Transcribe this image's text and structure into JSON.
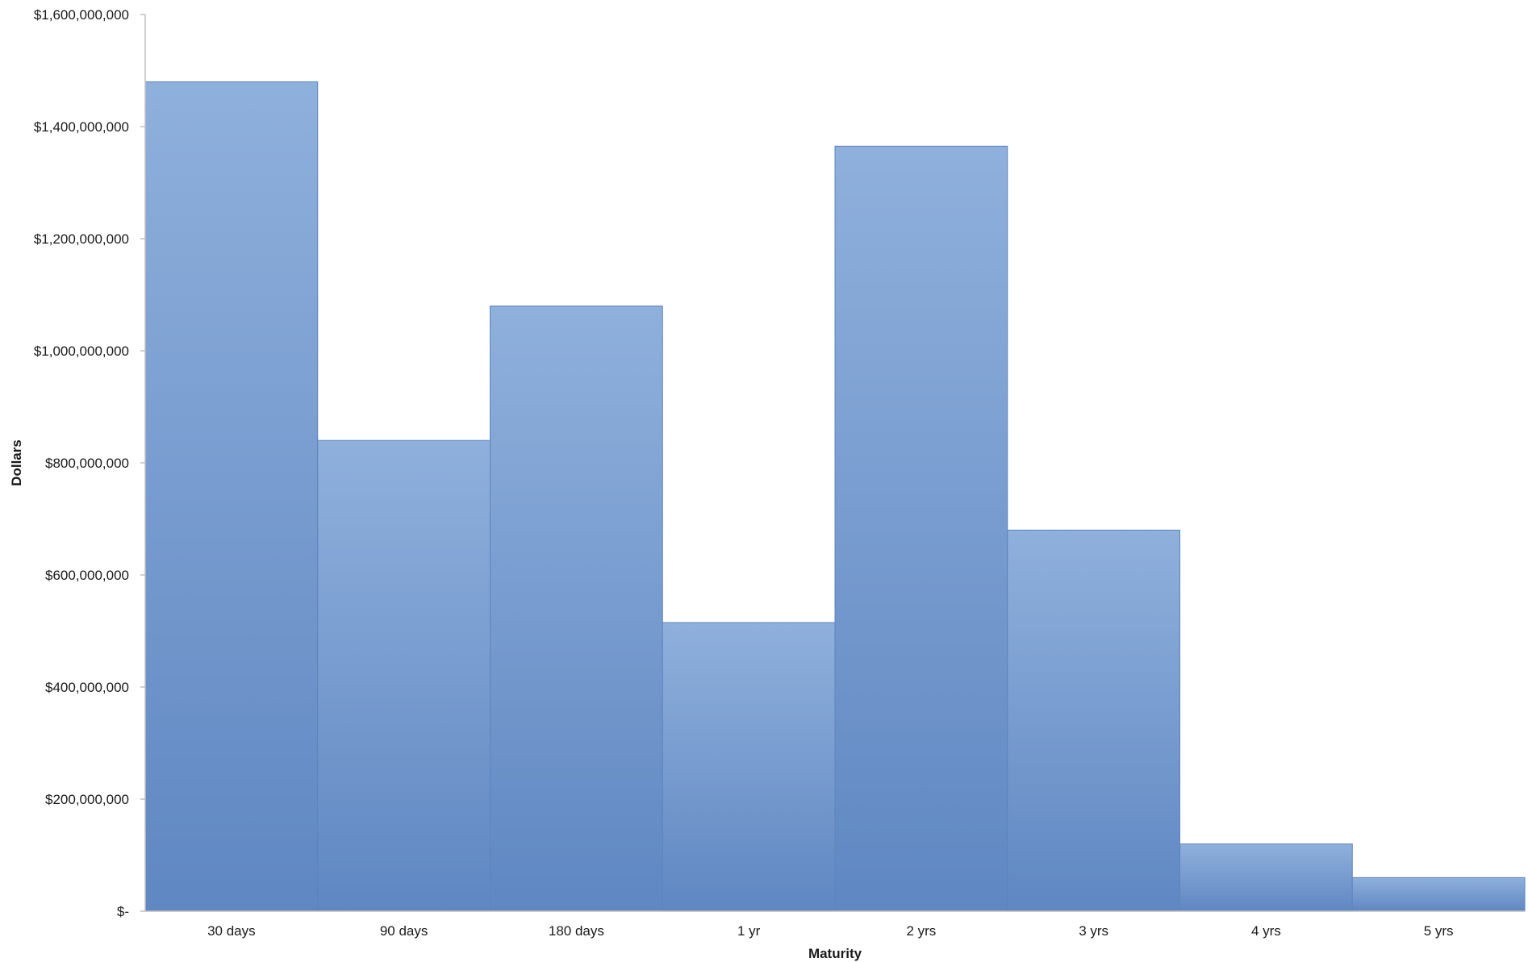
{
  "chart_data": {
    "type": "bar",
    "title": "",
    "xlabel": "Maturity",
    "ylabel": "Dollars",
    "categories": [
      "30 days",
      "90 days",
      "180 days",
      "1 yr",
      "2 yrs",
      "3 yrs",
      "4 yrs",
      "5 yrs"
    ],
    "values": [
      1480000000,
      840000000,
      1080000000,
      515000000,
      1365000000,
      680000000,
      120000000,
      60000000
    ],
    "ylim": [
      0,
      1600000000
    ],
    "yticks": [
      0,
      200000000,
      400000000,
      600000000,
      800000000,
      1000000000,
      1200000000,
      1400000000,
      1600000000
    ],
    "ytick_labels": [
      "$-",
      "$200,000,000",
      "$400,000,000",
      "$600,000,000",
      "$800,000,000",
      "$1,000,000,000",
      "$1,200,000,000",
      "$1,400,000,000",
      "$1,600,000,000"
    ],
    "grid": false,
    "legend": "none",
    "bar_gap": 0,
    "colors": {
      "bar_top": "#8fb0dc",
      "bar_bottom": "#5f87c2",
      "bar_edge": "#5d84bd",
      "axis": "#bfbfbf"
    }
  }
}
